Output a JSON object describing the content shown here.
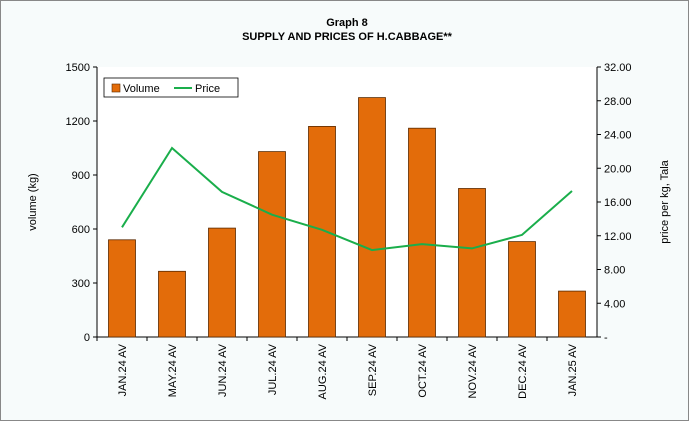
{
  "chart_data": {
    "type": "bar-line",
    "title": "Graph 8",
    "subtitle": "SUPPLY AND PRICES OF H.CABBAGE**",
    "y_label": "volume (kg)",
    "y2_label": "price per kg, Tala",
    "categories": [
      "JAN.24 AV",
      "MAY.24 AV",
      "JUN.24 AV",
      "JUL.24 AV",
      "AUG.24 AV",
      "SEP.24 AV",
      "OCT.24 AV",
      "NOV.24 AV",
      "DEC.24 AV",
      "JAN.25 AV"
    ],
    "series": [
      {
        "name": "Volume",
        "type": "bar",
        "color": "#e36c0a",
        "values": [
          540,
          365,
          605,
          1030,
          1170,
          1330,
          1160,
          825,
          530,
          255
        ]
      },
      {
        "name": "Price",
        "type": "line",
        "axis": "y2",
        "color": "#1aae4b",
        "values": [
          13.0,
          22.4,
          17.2,
          14.5,
          12.7,
          10.3,
          11.0,
          10.5,
          12.1,
          17.3
        ]
      }
    ],
    "ylim": [
      0,
      1500
    ],
    "yticks": [
      0,
      300,
      600,
      900,
      1200,
      1500
    ],
    "y2lim": [
      0,
      32
    ],
    "y2ticks": [
      {
        "value": 0,
        "label": "-"
      },
      {
        "value": 4,
        "label": "4.00"
      },
      {
        "value": 8,
        "label": "8.00"
      },
      {
        "value": 12,
        "label": "12.00"
      },
      {
        "value": 16,
        "label": "16.00"
      },
      {
        "value": 20,
        "label": "20.00"
      },
      {
        "value": 24,
        "label": "24.00"
      },
      {
        "value": 28,
        "label": "28.00"
      },
      {
        "value": 32,
        "label": "32.00"
      }
    ],
    "legend": "top-left",
    "grid": false
  }
}
